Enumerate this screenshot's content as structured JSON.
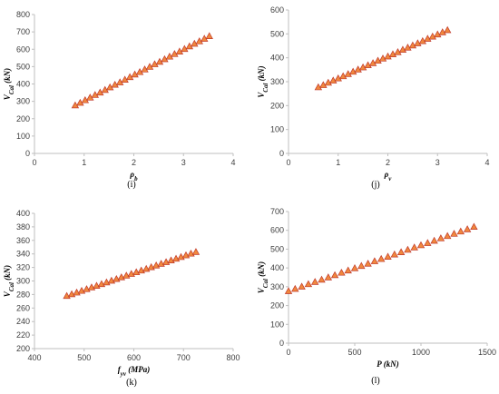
{
  "chart_data": [
    {
      "type": "scatter",
      "caption": "(i)",
      "xlabel": "ρ",
      "xlabel_sub": "b",
      "ylabel": "V",
      "ylabel_sub": "Cal",
      "ylabel_unit": " (kN)",
      "xlim": [
        0,
        4
      ],
      "ylim": [
        0,
        800
      ],
      "xticks": [
        0,
        1,
        2,
        3,
        4
      ],
      "yticks": [
        0,
        100,
        200,
        300,
        400,
        500,
        600,
        700,
        800
      ],
      "marker": {
        "shape": "triangle",
        "fill": "#f0883e",
        "stroke": "#c0392b"
      },
      "x": [
        0.82,
        0.92,
        1.02,
        1.12,
        1.22,
        1.32,
        1.42,
        1.52,
        1.62,
        1.72,
        1.82,
        1.92,
        2.02,
        2.12,
        2.22,
        2.32,
        2.42,
        2.52,
        2.62,
        2.72,
        2.82,
        2.92,
        3.02,
        3.12,
        3.22,
        3.32,
        3.42,
        3.52
      ],
      "y": [
        277,
        292,
        307,
        322,
        337,
        351,
        366,
        381,
        396,
        410,
        425,
        440,
        455,
        469,
        484,
        499,
        514,
        528,
        543,
        558,
        573,
        587,
        602,
        617,
        632,
        646,
        661,
        676
      ]
    },
    {
      "type": "scatter",
      "caption": "(j)",
      "xlabel": "ρ",
      "xlabel_sub": "v",
      "ylabel": "V",
      "ylabel_sub": "Cal",
      "ylabel_unit": " (kN)",
      "xlim": [
        0,
        4
      ],
      "ylim": [
        0,
        600
      ],
      "xticks": [
        0,
        1,
        2,
        3,
        4
      ],
      "yticks": [
        0,
        100,
        200,
        300,
        400,
        500,
        600
      ],
      "marker": {
        "shape": "triangle",
        "fill": "#f0883e",
        "stroke": "#c0392b"
      },
      "x": [
        0.6,
        0.7,
        0.8,
        0.9,
        1.0,
        1.1,
        1.2,
        1.3,
        1.4,
        1.5,
        1.6,
        1.7,
        1.8,
        1.9,
        2.0,
        2.1,
        2.2,
        2.3,
        2.4,
        2.5,
        2.6,
        2.7,
        2.8,
        2.9,
        3.0,
        3.1,
        3.2
      ],
      "y": [
        277,
        286,
        296,
        305,
        314,
        323,
        332,
        342,
        351,
        360,
        369,
        378,
        388,
        397,
        406,
        415,
        424,
        434,
        443,
        452,
        461,
        470,
        480,
        489,
        498,
        507,
        516
      ]
    },
    {
      "type": "scatter",
      "caption": "(k)",
      "xlabel": "f",
      "xlabel_sub": "yv",
      "xlabel_unit": " (MPa)",
      "ylabel": "V",
      "ylabel_sub": "Cal",
      "ylabel_unit": " (kN)",
      "xlim": [
        400,
        800
      ],
      "ylim": [
        200,
        400
      ],
      "xticks": [
        400,
        500,
        600,
        700,
        800
      ],
      "yticks": [
        200,
        220,
        240,
        260,
        280,
        300,
        320,
        340,
        360,
        380,
        400
      ],
      "marker": {
        "shape": "triangle",
        "fill": "#f0883e",
        "stroke": "#c0392b"
      },
      "x": [
        465,
        475,
        485,
        495,
        505,
        515,
        525,
        535,
        545,
        555,
        565,
        575,
        585,
        595,
        605,
        615,
        625,
        635,
        645,
        655,
        665,
        675,
        685,
        695,
        705,
        715,
        725
      ],
      "y": [
        278,
        280.5,
        283,
        285.5,
        288,
        290.5,
        293,
        295.5,
        298,
        300.5,
        303,
        305.5,
        308,
        310.5,
        313,
        315.5,
        318,
        320.5,
        323,
        325.5,
        328,
        330.5,
        333,
        335.5,
        338,
        340.5,
        343
      ]
    },
    {
      "type": "scatter",
      "caption": "(l)",
      "xlabel": "P",
      "xlabel_sub": "",
      "xlabel_unit": " (kN)",
      "ylabel": "V",
      "ylabel_sub": "Cal",
      "ylabel_unit": " (kN)",
      "xlim": [
        0,
        1500
      ],
      "ylim": [
        0,
        700
      ],
      "xticks": [
        0,
        500,
        1000,
        1500
      ],
      "yticks": [
        0,
        100,
        200,
        300,
        400,
        500,
        600,
        700
      ],
      "marker": {
        "shape": "triangle",
        "fill": "#f0883e",
        "stroke": "#c0392b"
      },
      "x": [
        0,
        50,
        100,
        150,
        200,
        250,
        300,
        350,
        400,
        450,
        500,
        550,
        600,
        650,
        700,
        750,
        800,
        850,
        900,
        950,
        1000,
        1050,
        1100,
        1150,
        1200,
        1250,
        1300,
        1350,
        1400
      ],
      "y": [
        277,
        289,
        301,
        314,
        326,
        338,
        350,
        362,
        375,
        387,
        399,
        411,
        423,
        436,
        448,
        460,
        472,
        484,
        497,
        509,
        521,
        533,
        545,
        558,
        570,
        582,
        594,
        606,
        619
      ]
    }
  ]
}
